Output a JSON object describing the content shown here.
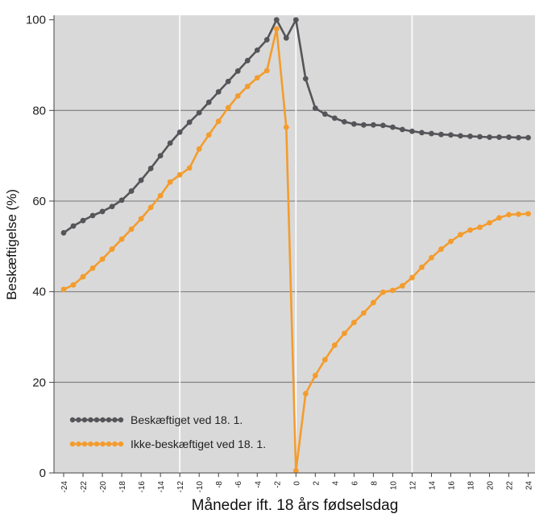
{
  "chart_data": {
    "type": "line",
    "xlabel": "Måneder ift. 18 års fødselsdag",
    "ylabel": "Beskæftigelse (%)",
    "xlim": [
      -25,
      24.7
    ],
    "ylim": [
      0,
      101
    ],
    "x_ticks": [
      -24,
      -22,
      -20,
      -18,
      -16,
      -14,
      -12,
      -10,
      -8,
      -6,
      -4,
      -2,
      0,
      2,
      4,
      6,
      8,
      10,
      12,
      14,
      16,
      18,
      20,
      22,
      24
    ],
    "x_tick_labels": [
      "-24",
      "-22",
      "-20",
      "-18",
      "-16",
      "-14",
      "-12",
      "-10",
      "-8",
      "-6",
      "-4",
      "-2",
      "0",
      "2",
      "4",
      "6",
      "8",
      "10",
      "12",
      "14",
      "16",
      "18",
      "20",
      "22",
      "24"
    ],
    "y_ticks": [
      0,
      20,
      40,
      60,
      80,
      100
    ],
    "y_tick_labels": [
      "0",
      "20",
      "40",
      "60",
      "80",
      "100"
    ],
    "gridlines_y": [
      20,
      40,
      60,
      80
    ],
    "gridlines_x": [
      -12,
      0,
      12
    ],
    "grid": true,
    "legend_position": "bottom-left",
    "x": [
      -24,
      -23,
      -22,
      -21,
      -20,
      -19,
      -18,
      -17,
      -16,
      -15,
      -14,
      -13,
      -12,
      -11,
      -10,
      -9,
      -8,
      -7,
      -6,
      -5,
      -4,
      -3,
      -2,
      -1,
      0,
      1,
      2,
      3,
      4,
      5,
      6,
      7,
      8,
      9,
      10,
      11,
      12,
      13,
      14,
      15,
      16,
      17,
      18,
      19,
      20,
      21,
      22,
      23,
      24
    ],
    "series": [
      {
        "name": "Beskæftiget ved 18. 1.",
        "color": "#555559",
        "values": [
          53,
          54.5,
          55.7,
          56.8,
          57.7,
          58.8,
          60.2,
          62.2,
          64.6,
          67.2,
          70,
          72.8,
          75.2,
          77.4,
          79.5,
          81.8,
          84.1,
          86.4,
          88.7,
          91,
          93.3,
          95.6,
          100,
          96,
          100,
          87,
          80.5,
          79.2,
          78.3,
          77.5,
          77,
          76.8,
          76.8,
          76.7,
          76.3,
          75.8,
          75.4,
          75.1,
          74.9,
          74.7,
          74.6,
          74.4,
          74.3,
          74.2,
          74.1,
          74.1,
          74.1,
          74,
          74
        ]
      },
      {
        "name": "Ikke-beskæftiget ved 18. 1.",
        "color": "#f39c2e",
        "values": [
          40.5,
          41.5,
          43.3,
          45.2,
          47.2,
          49.4,
          51.6,
          53.8,
          56.1,
          58.6,
          61.2,
          64.2,
          65.8,
          67.3,
          71.5,
          74.6,
          77.6,
          80.6,
          83.2,
          85.3,
          87.2,
          88.8,
          98,
          76.3,
          0.5,
          17.5,
          21.5,
          25,
          28.2,
          30.8,
          33.2,
          35.3,
          37.6,
          39.9,
          40.3,
          41.3,
          43.1,
          45.4,
          47.5,
          49.4,
          51.1,
          52.6,
          53.6,
          54.2,
          55.2,
          56.3,
          57,
          57.1,
          57.2
        ]
      }
    ]
  }
}
